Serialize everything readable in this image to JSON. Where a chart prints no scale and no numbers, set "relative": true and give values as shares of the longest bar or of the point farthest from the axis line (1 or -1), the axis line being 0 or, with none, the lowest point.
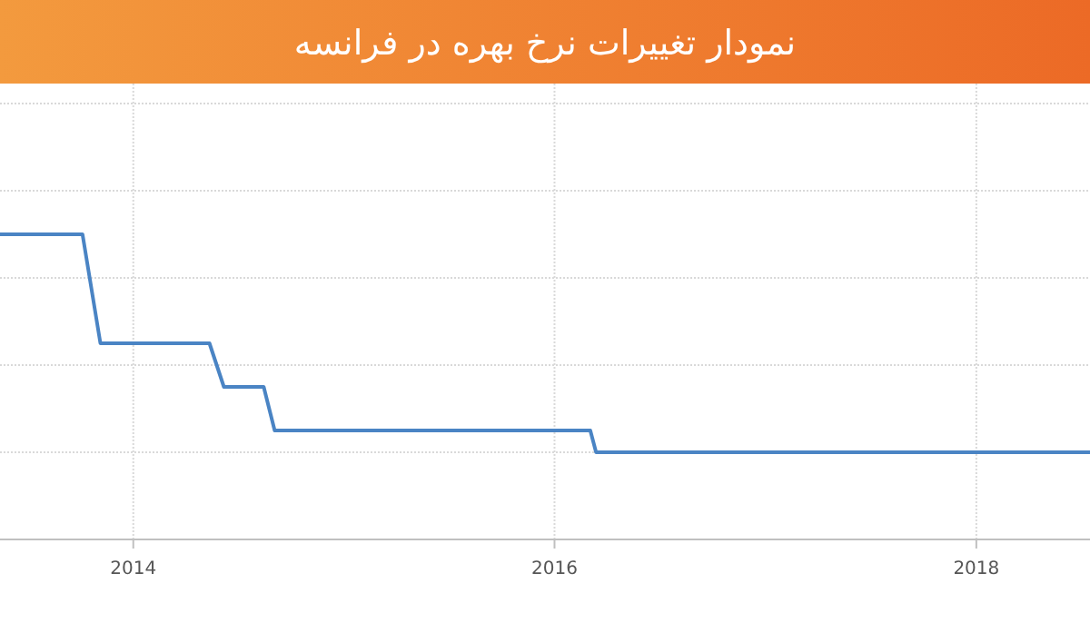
{
  "chart_data": {
    "type": "line",
    "title": "نمودار تغییرات نرخ بهره در فرانسه",
    "relative": true,
    "grid": true,
    "line_style": "solid",
    "xlim": [
      "2013-05-15",
      "2018-07-17"
    ],
    "xticks": [
      {
        "value": "2014-01-01",
        "label": "2014"
      },
      {
        "value": "2016-01-01",
        "label": "2016"
      },
      {
        "value": "2018-01-01",
        "label": "2018"
      }
    ],
    "tick_labels": "x",
    "series": [
      {
        "color": "#4a84c4",
        "x": [
          "2013-05-15",
          "2013-10-05",
          "2013-11-05",
          "2014-05-13",
          "2014-06-07",
          "2014-08-15",
          "2014-09-03",
          "2016-03-03",
          "2016-03-13",
          "2018-07-17"
        ],
        "values": [
          1,
          1,
          0.5,
          0.5,
          0.3,
          0.3,
          0.1,
          0.1,
          0,
          0
        ]
      }
    ]
  }
}
